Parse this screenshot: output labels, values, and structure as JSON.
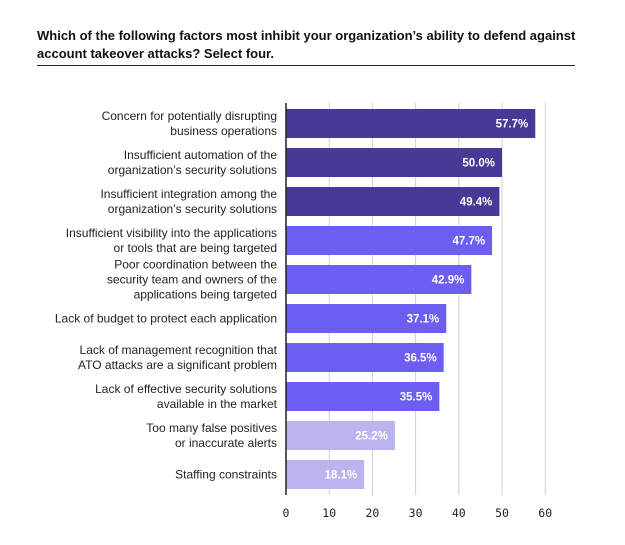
{
  "chart_data": {
    "type": "bar",
    "orientation": "horizontal",
    "title": "Which of the following factors most inhibit your organization’s ability to defend against account takeover attacks? Select four.",
    "xlim": [
      0,
      60
    ],
    "xticks": [
      0,
      10,
      20,
      30,
      40,
      50,
      60
    ],
    "grid": true,
    "categories": [
      [
        "Concern for potentially disrupting",
        "business operations"
      ],
      [
        "Insufficient automation of the",
        "organization’s security solutions"
      ],
      [
        "Insufficient integration among the",
        "organization’s security solutions"
      ],
      [
        "Insufficient visibility into the applications",
        "or tools that are being targeted"
      ],
      [
        "Poor coordination between the",
        "security team and owners of the",
        "applications being targeted"
      ],
      [
        "Lack of budget to protect each application"
      ],
      [
        "Lack of management recognition that",
        "ATO attacks are a significant problem"
      ],
      [
        "Lack of effective security solutions",
        "available in the market"
      ],
      [
        "Too many false positives",
        "or inaccurate alerts"
      ],
      [
        "Staffing constraints"
      ]
    ],
    "values": [
      57.7,
      50.0,
      49.4,
      47.7,
      42.9,
      37.1,
      36.5,
      35.5,
      25.2,
      18.1
    ],
    "value_labels": [
      "57.7%",
      "50.0%",
      "49.4%",
      "47.7%",
      "42.9%",
      "37.1%",
      "36.5%",
      "35.5%",
      "25.2%",
      "18.1%"
    ],
    "colors": [
      "#453a96",
      "#453a96",
      "#453a96",
      "#6b5ef0",
      "#6b5ef0",
      "#6b5ef0",
      "#6b5ef0",
      "#6b5ef0",
      "#bab5ee",
      "#bab5ee"
    ],
    "grid_color": "#d0d0d0",
    "axis_color": "#222222"
  }
}
